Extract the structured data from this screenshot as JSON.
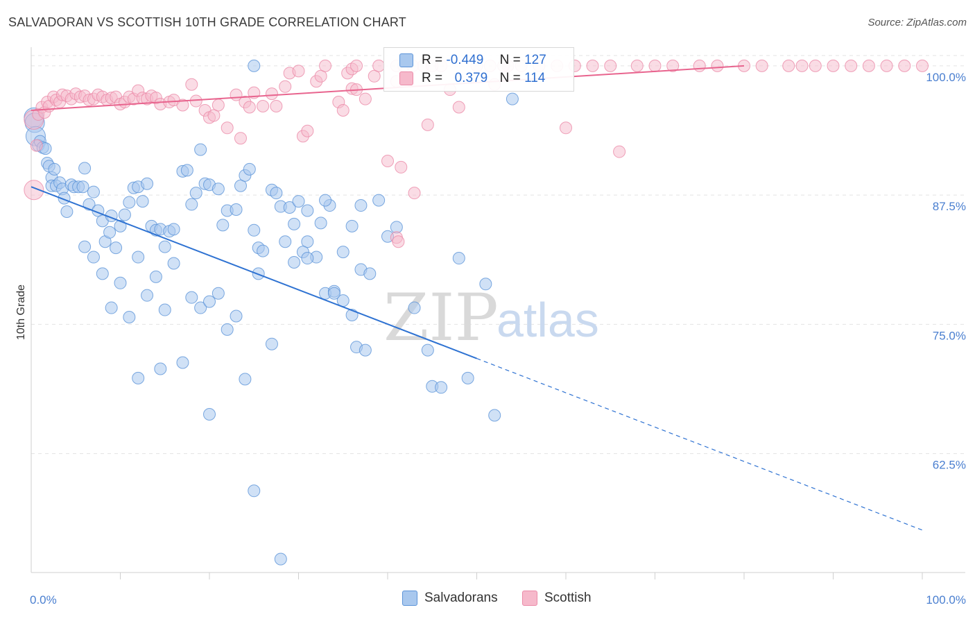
{
  "title": "SALVADORAN VS SCOTTISH 10TH GRADE CORRELATION CHART",
  "source": "Source: ZipAtlas.com",
  "watermark": {
    "zip": "ZIP",
    "atlas": "atlas"
  },
  "colors": {
    "blue_fill": "#a9c8ee",
    "blue_stroke": "#5b93d8",
    "blue_line": "#2e72d2",
    "pink_fill": "#f6b9cb",
    "pink_stroke": "#eb8aa8",
    "pink_line": "#e8648e",
    "tick_text": "#4a7fd0"
  },
  "legend": {
    "rows": [
      {
        "r_label": "R =",
        "r_value": "-0.449",
        "n_label": "N =",
        "n_value": "127"
      },
      {
        "r_label": "R =",
        "r_value": "0.379",
        "n_label": "N =",
        "n_value": "114"
      }
    ]
  },
  "bottom_legend": [
    "Salvadorans",
    "Scottish"
  ],
  "chart_data": {
    "type": "scatter",
    "title": "SALVADORAN VS SCOTTISH 10TH GRADE CORRELATION CHART",
    "xlabel": "",
    "ylabel": "10th Grade",
    "xlim": [
      0,
      100
    ],
    "ylim": [
      51,
      101
    ],
    "x_tick_labels": [
      "0.0%",
      "100.0%"
    ],
    "y_ticks": [
      62.5,
      75.0,
      87.5,
      100.0
    ],
    "y_tick_labels": [
      "62.5%",
      "75.0%",
      "87.5%",
      "100.0%"
    ],
    "grid": true,
    "legend_position": "top-center",
    "series": [
      {
        "name": "Salvadorans",
        "r": -0.449,
        "n": 127,
        "trend": {
          "x0": 0,
          "y0": 88.3,
          "x1": 50,
          "y1": 71.7,
          "dash_x1": 100,
          "dash_y1": 55.1
        },
        "points": [
          [
            0.3,
            95.0
          ],
          [
            0.4,
            94.5
          ],
          [
            0.5,
            93.2
          ],
          [
            0.8,
            92.3
          ],
          [
            1.0,
            92.7
          ],
          [
            1.3,
            92.1
          ],
          [
            1.6,
            92.0
          ],
          [
            1.8,
            90.6
          ],
          [
            2.0,
            90.3
          ],
          [
            2.3,
            89.2
          ],
          [
            2.6,
            90.0
          ],
          [
            2.3,
            88.4
          ],
          [
            2.8,
            88.4
          ],
          [
            3.2,
            88.7
          ],
          [
            3.5,
            88.1
          ],
          [
            3.7,
            87.2
          ],
          [
            4.0,
            85.9
          ],
          [
            4.5,
            88.5
          ],
          [
            4.8,
            88.3
          ],
          [
            5.3,
            88.3
          ],
          [
            6.0,
            90.1
          ],
          [
            5.8,
            88.3
          ],
          [
            6.5,
            86.6
          ],
          [
            7.0,
            87.8
          ],
          [
            7.5,
            86.0
          ],
          [
            8.0,
            85.0
          ],
          [
            8.3,
            83.0
          ],
          [
            8.8,
            83.9
          ],
          [
            9.0,
            85.5
          ],
          [
            9.5,
            82.4
          ],
          [
            10.0,
            84.5
          ],
          [
            10.5,
            85.6
          ],
          [
            11.0,
            86.8
          ],
          [
            11.5,
            88.2
          ],
          [
            12.0,
            88.3
          ],
          [
            12.5,
            86.9
          ],
          [
            13.0,
            88.6
          ],
          [
            13.5,
            84.5
          ],
          [
            14.0,
            84.1
          ],
          [
            14.5,
            84.2
          ],
          [
            15.0,
            82.5
          ],
          [
            15.5,
            84.0
          ],
          [
            16.0,
            84.2
          ],
          [
            17.0,
            89.8
          ],
          [
            17.5,
            89.9
          ],
          [
            18.0,
            86.6
          ],
          [
            18.5,
            87.7
          ],
          [
            19.0,
            91.9
          ],
          [
            19.5,
            88.6
          ],
          [
            20.0,
            88.5
          ],
          [
            21.0,
            88.1
          ],
          [
            21.5,
            84.6
          ],
          [
            22.0,
            86.0
          ],
          [
            23.0,
            86.1
          ],
          [
            23.5,
            88.4
          ],
          [
            24.0,
            89.4
          ],
          [
            24.5,
            90.0
          ],
          [
            25.0,
            84.1
          ],
          [
            25.5,
            82.4
          ],
          [
            26.0,
            82.1
          ],
          [
            27.0,
            88.0
          ],
          [
            27.5,
            87.7
          ],
          [
            28.0,
            86.4
          ],
          [
            29.0,
            86.3
          ],
          [
            29.5,
            84.7
          ],
          [
            30.0,
            86.9
          ],
          [
            31.0,
            83.0
          ],
          [
            32.0,
            81.5
          ],
          [
            33.0,
            78.0
          ],
          [
            34.0,
            78.2
          ],
          [
            35.0,
            77.3
          ],
          [
            36.0,
            75.9
          ],
          [
            37.0,
            80.3
          ],
          [
            38.0,
            79.9
          ],
          [
            40.0,
            83.5
          ],
          [
            41.0,
            84.4
          ],
          [
            43.0,
            76.6
          ],
          [
            44.5,
            72.5
          ],
          [
            45.0,
            69.0
          ],
          [
            46.0,
            68.9
          ],
          [
            48.0,
            81.4
          ],
          [
            49.0,
            69.8
          ],
          [
            51.0,
            78.9
          ],
          [
            52.0,
            66.2
          ],
          [
            25.0,
            100.0
          ],
          [
            54.0,
            96.8
          ],
          [
            6.0,
            82.5
          ],
          [
            7.0,
            81.5
          ],
          [
            8.0,
            79.9
          ],
          [
            9.0,
            76.6
          ],
          [
            10.0,
            79.0
          ],
          [
            11.0,
            75.7
          ],
          [
            12.0,
            81.5
          ],
          [
            13.0,
            77.8
          ],
          [
            14.0,
            79.6
          ],
          [
            15.0,
            76.4
          ],
          [
            16.0,
            80.9
          ],
          [
            17.0,
            71.3
          ],
          [
            18.0,
            77.6
          ],
          [
            19.0,
            76.6
          ],
          [
            20.0,
            77.2
          ],
          [
            21.0,
            78.0
          ],
          [
            22.0,
            74.5
          ],
          [
            23.0,
            75.8
          ],
          [
            24.0,
            69.7
          ],
          [
            25.5,
            79.9
          ],
          [
            27.0,
            73.1
          ],
          [
            28.5,
            83.0
          ],
          [
            29.5,
            81.0
          ],
          [
            30.5,
            82.0
          ],
          [
            31.0,
            86.0
          ],
          [
            32.5,
            84.8
          ],
          [
            33.5,
            86.5
          ],
          [
            34.0,
            78.0
          ],
          [
            36.5,
            72.8
          ],
          [
            37.5,
            72.5
          ],
          [
            12.0,
            69.8
          ],
          [
            14.5,
            70.7
          ],
          [
            20.0,
            66.3
          ],
          [
            25.0,
            58.9
          ],
          [
            28.0,
            52.3
          ],
          [
            31.0,
            81.4
          ],
          [
            33.0,
            87.0
          ],
          [
            35.0,
            82.0
          ],
          [
            36.0,
            84.5
          ],
          [
            37.0,
            86.5
          ],
          [
            39.0,
            87.0
          ]
        ]
      },
      {
        "name": "Scottish",
        "r": 0.379,
        "n": 114,
        "trend": {
          "x0": 0,
          "y0": 95.7,
          "x1": 80,
          "y1": 100.0
        },
        "points": [
          [
            0.3,
            94.8
          ],
          [
            0.3,
            88.0
          ],
          [
            0.6,
            92.3
          ],
          [
            0.8,
            95.3
          ],
          [
            1.2,
            96.0
          ],
          [
            1.5,
            95.5
          ],
          [
            1.8,
            96.5
          ],
          [
            2.0,
            96.1
          ],
          [
            2.5,
            97.0
          ],
          [
            2.8,
            96.7
          ],
          [
            3.2,
            96.5
          ],
          [
            3.5,
            97.2
          ],
          [
            4.0,
            97.1
          ],
          [
            4.5,
            96.8
          ],
          [
            5.0,
            97.3
          ],
          [
            5.5,
            97.0
          ],
          [
            6.0,
            97.1
          ],
          [
            6.5,
            96.7
          ],
          [
            7.0,
            96.8
          ],
          [
            7.5,
            97.2
          ],
          [
            8.0,
            97.0
          ],
          [
            8.5,
            96.7
          ],
          [
            9.0,
            96.9
          ],
          [
            9.5,
            97.0
          ],
          [
            10.0,
            96.3
          ],
          [
            10.5,
            96.5
          ],
          [
            11.0,
            97.0
          ],
          [
            11.5,
            96.8
          ],
          [
            12.0,
            97.6
          ],
          [
            12.5,
            96.9
          ],
          [
            13.0,
            96.8
          ],
          [
            13.5,
            97.1
          ],
          [
            14.0,
            96.9
          ],
          [
            14.5,
            96.3
          ],
          [
            15.5,
            96.5
          ],
          [
            16.0,
            96.7
          ],
          [
            17.0,
            96.2
          ],
          [
            18.0,
            98.2
          ],
          [
            18.5,
            96.6
          ],
          [
            19.5,
            95.7
          ],
          [
            20.0,
            95.0
          ],
          [
            20.5,
            95.2
          ],
          [
            21.0,
            96.2
          ],
          [
            22.0,
            94.0
          ],
          [
            23.0,
            97.2
          ],
          [
            23.5,
            93.0
          ],
          [
            24.0,
            96.5
          ],
          [
            24.5,
            96.0
          ],
          [
            25.0,
            97.4
          ],
          [
            26.0,
            96.1
          ],
          [
            27.0,
            97.3
          ],
          [
            27.5,
            96.1
          ],
          [
            28.5,
            98.0
          ],
          [
            29.0,
            99.3
          ],
          [
            30.0,
            99.5
          ],
          [
            30.5,
            93.2
          ],
          [
            31.0,
            93.7
          ],
          [
            32.0,
            98.5
          ],
          [
            32.5,
            99.0
          ],
          [
            33.0,
            100.0
          ],
          [
            34.5,
            96.5
          ],
          [
            35.0,
            95.7
          ],
          [
            35.5,
            99.3
          ],
          [
            36.0,
            97.8
          ],
          [
            36.5,
            97.7
          ],
          [
            37.5,
            96.8
          ],
          [
            38.5,
            99.0
          ],
          [
            39.0,
            100.0
          ],
          [
            40.0,
            90.8
          ],
          [
            41.0,
            98.5
          ],
          [
            41.5,
            90.2
          ],
          [
            43.0,
            87.7
          ],
          [
            44.0,
            100.0
          ],
          [
            44.5,
            94.3
          ],
          [
            46.0,
            100.0
          ],
          [
            47.0,
            97.7
          ],
          [
            48.0,
            96.0
          ],
          [
            50.0,
            100.0
          ],
          [
            52.0,
            98.2
          ],
          [
            53.5,
            100.0
          ],
          [
            55.0,
            100.0
          ],
          [
            57.0,
            100.0
          ],
          [
            59.0,
            100.0
          ],
          [
            60.0,
            94.0
          ],
          [
            61.0,
            100.0
          ],
          [
            63.0,
            100.0
          ],
          [
            65.0,
            100.0
          ],
          [
            66.0,
            91.7
          ],
          [
            68.0,
            100.0
          ],
          [
            70.0,
            100.0
          ],
          [
            72.0,
            100.0
          ],
          [
            75.0,
            100.0
          ],
          [
            77.0,
            100.0
          ],
          [
            80.0,
            100.0
          ],
          [
            82.0,
            100.0
          ],
          [
            85.0,
            100.0
          ],
          [
            86.5,
            100.0
          ],
          [
            88.0,
            100.0
          ],
          [
            90.0,
            100.0
          ],
          [
            92.0,
            100.0
          ],
          [
            94.0,
            100.0
          ],
          [
            96.0,
            100.0
          ],
          [
            98.0,
            100.0
          ],
          [
            100.0,
            100.0
          ],
          [
            41.0,
            100.0
          ],
          [
            36.0,
            99.7
          ],
          [
            41.8,
            100.0
          ],
          [
            42.8,
            100.0
          ],
          [
            36.5,
            100.0
          ],
          [
            45.0,
            100.0
          ],
          [
            51.5,
            100.0
          ],
          [
            53.0,
            100.0
          ],
          [
            41.0,
            83.4
          ],
          [
            41.2,
            83.0
          ]
        ]
      }
    ]
  }
}
